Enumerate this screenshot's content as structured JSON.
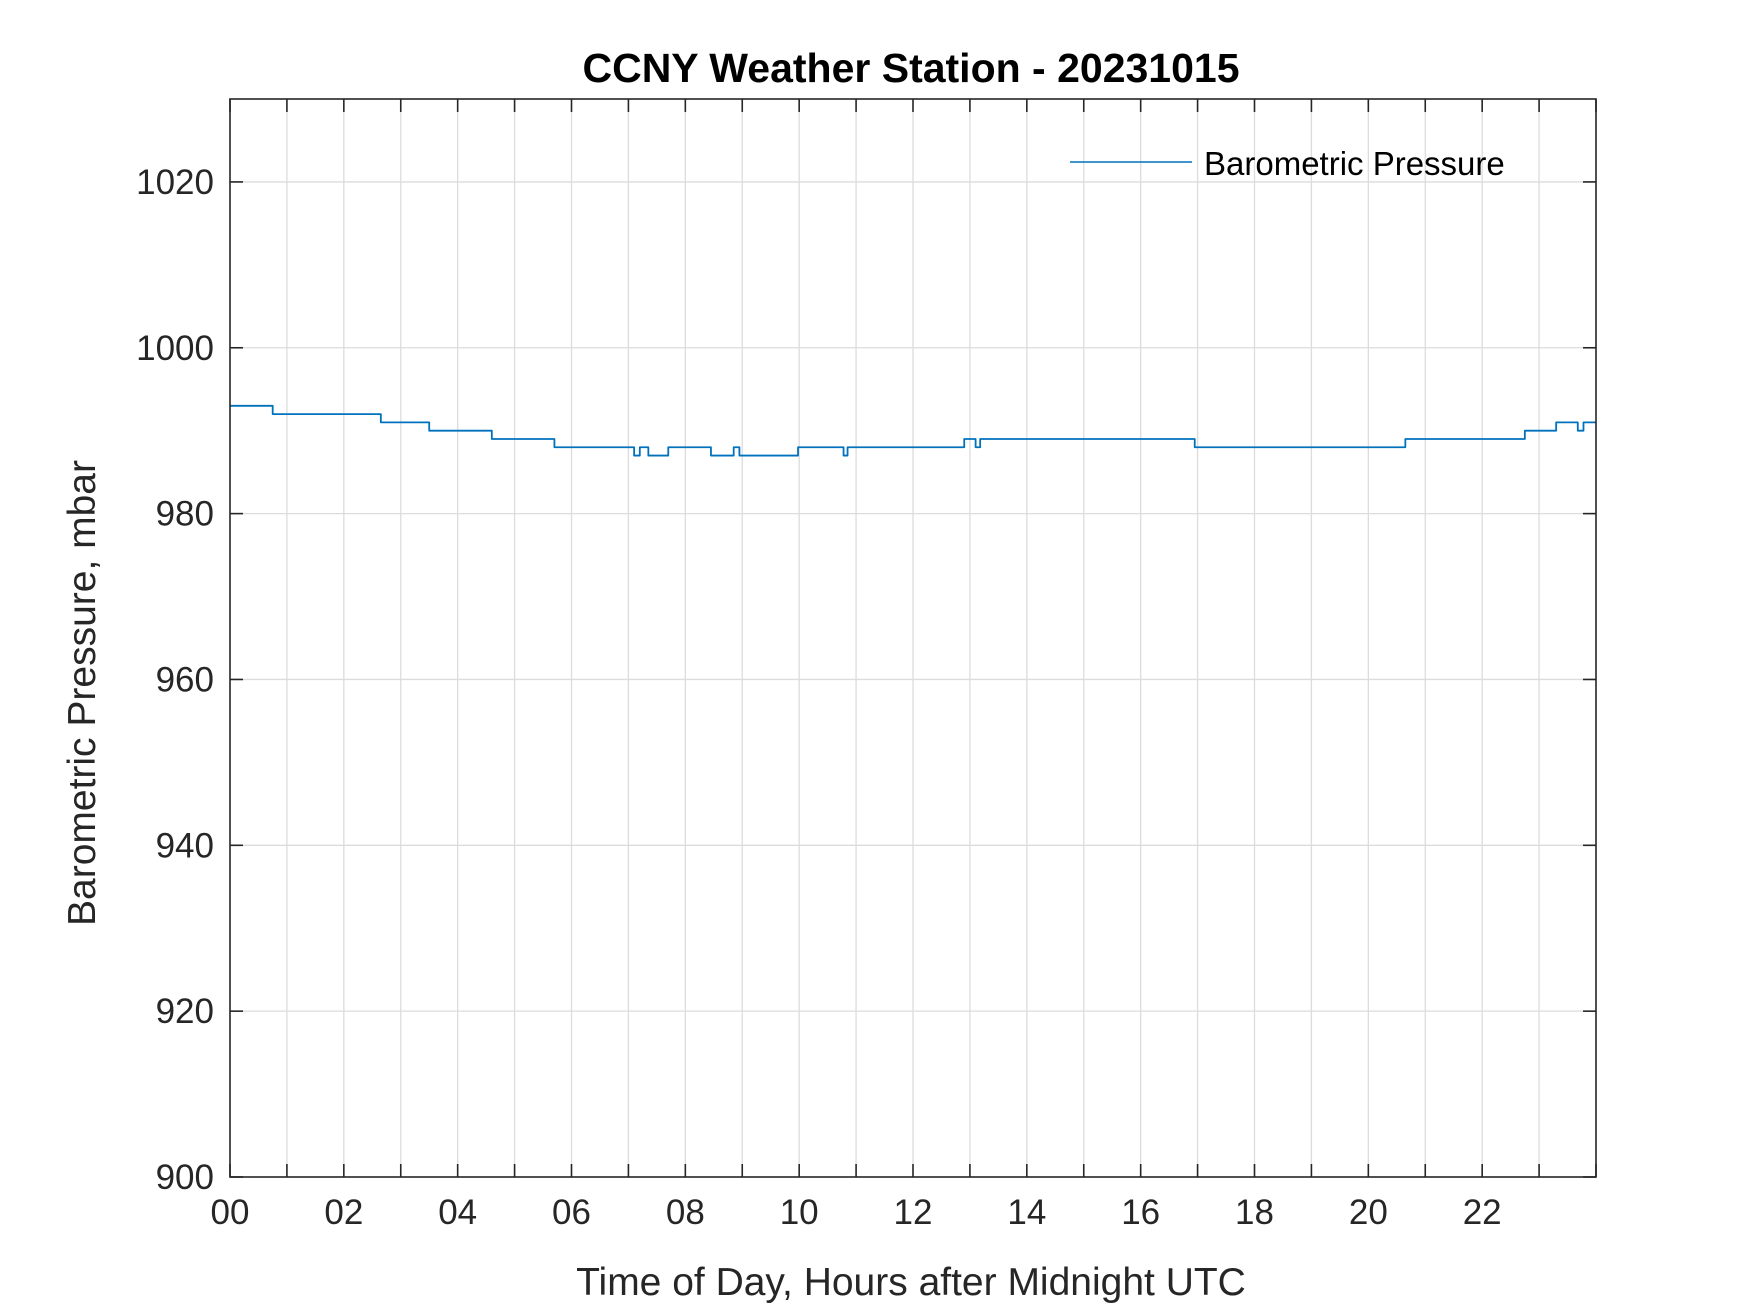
{
  "chart_data": {
    "type": "line",
    "title": "CCNY Weather Station - 20231015",
    "xlabel": "Time of Day, Hours after Midnight UTC",
    "ylabel": "Barometric Pressure, mbar",
    "xlim": [
      0,
      24
    ],
    "ylim": [
      900,
      1030
    ],
    "x_tick_values": [
      0,
      2,
      4,
      6,
      8,
      10,
      12,
      14,
      16,
      18,
      20,
      22
    ],
    "x_tick_labels": [
      "00",
      "02",
      "04",
      "06",
      "08",
      "10",
      "12",
      "14",
      "16",
      "18",
      "20",
      "22"
    ],
    "x_grid_step": 1,
    "y_tick_values": [
      900,
      920,
      940,
      960,
      980,
      1000,
      1020
    ],
    "y_tick_labels": [
      "900",
      "920",
      "940",
      "960",
      "980",
      "1000",
      "1020"
    ],
    "grid": true,
    "legend_position": "top-right",
    "series": [
      {
        "name": "Barometric Pressure",
        "color": "#0072BD",
        "x": [
          0,
          0.75,
          0.75,
          2.65,
          2.65,
          3.5,
          3.5,
          4.6,
          4.6,
          5.7,
          5.7,
          7.1,
          7.1,
          7.2,
          7.2,
          7.35,
          7.35,
          7.7,
          7.7,
          7.85,
          7.85,
          8.45,
          8.45,
          8.85,
          8.85,
          8.95,
          8.95,
          9.98,
          9.98,
          10.78,
          10.78,
          10.85,
          10.85,
          12.9,
          12.9,
          13.1,
          13.1,
          13.18,
          13.18,
          13.28,
          13.28,
          16.95,
          16.95,
          20.65,
          20.65,
          22.75,
          22.75,
          23.3,
          23.3,
          23.68,
          23.68,
          23.78,
          23.78,
          24
        ],
        "y": [
          993,
          993,
          992,
          992,
          991,
          991,
          990,
          990,
          989,
          989,
          988,
          988,
          987,
          987,
          988,
          988,
          987,
          987,
          988,
          988,
          988,
          988,
          987,
          987,
          988,
          988,
          987,
          987,
          988,
          988,
          987,
          987,
          988,
          988,
          989,
          989,
          988,
          988,
          989,
          989,
          989,
          989,
          988,
          988,
          989,
          989,
          990,
          990,
          991,
          991,
          990,
          990,
          991,
          991
        ]
      }
    ]
  }
}
